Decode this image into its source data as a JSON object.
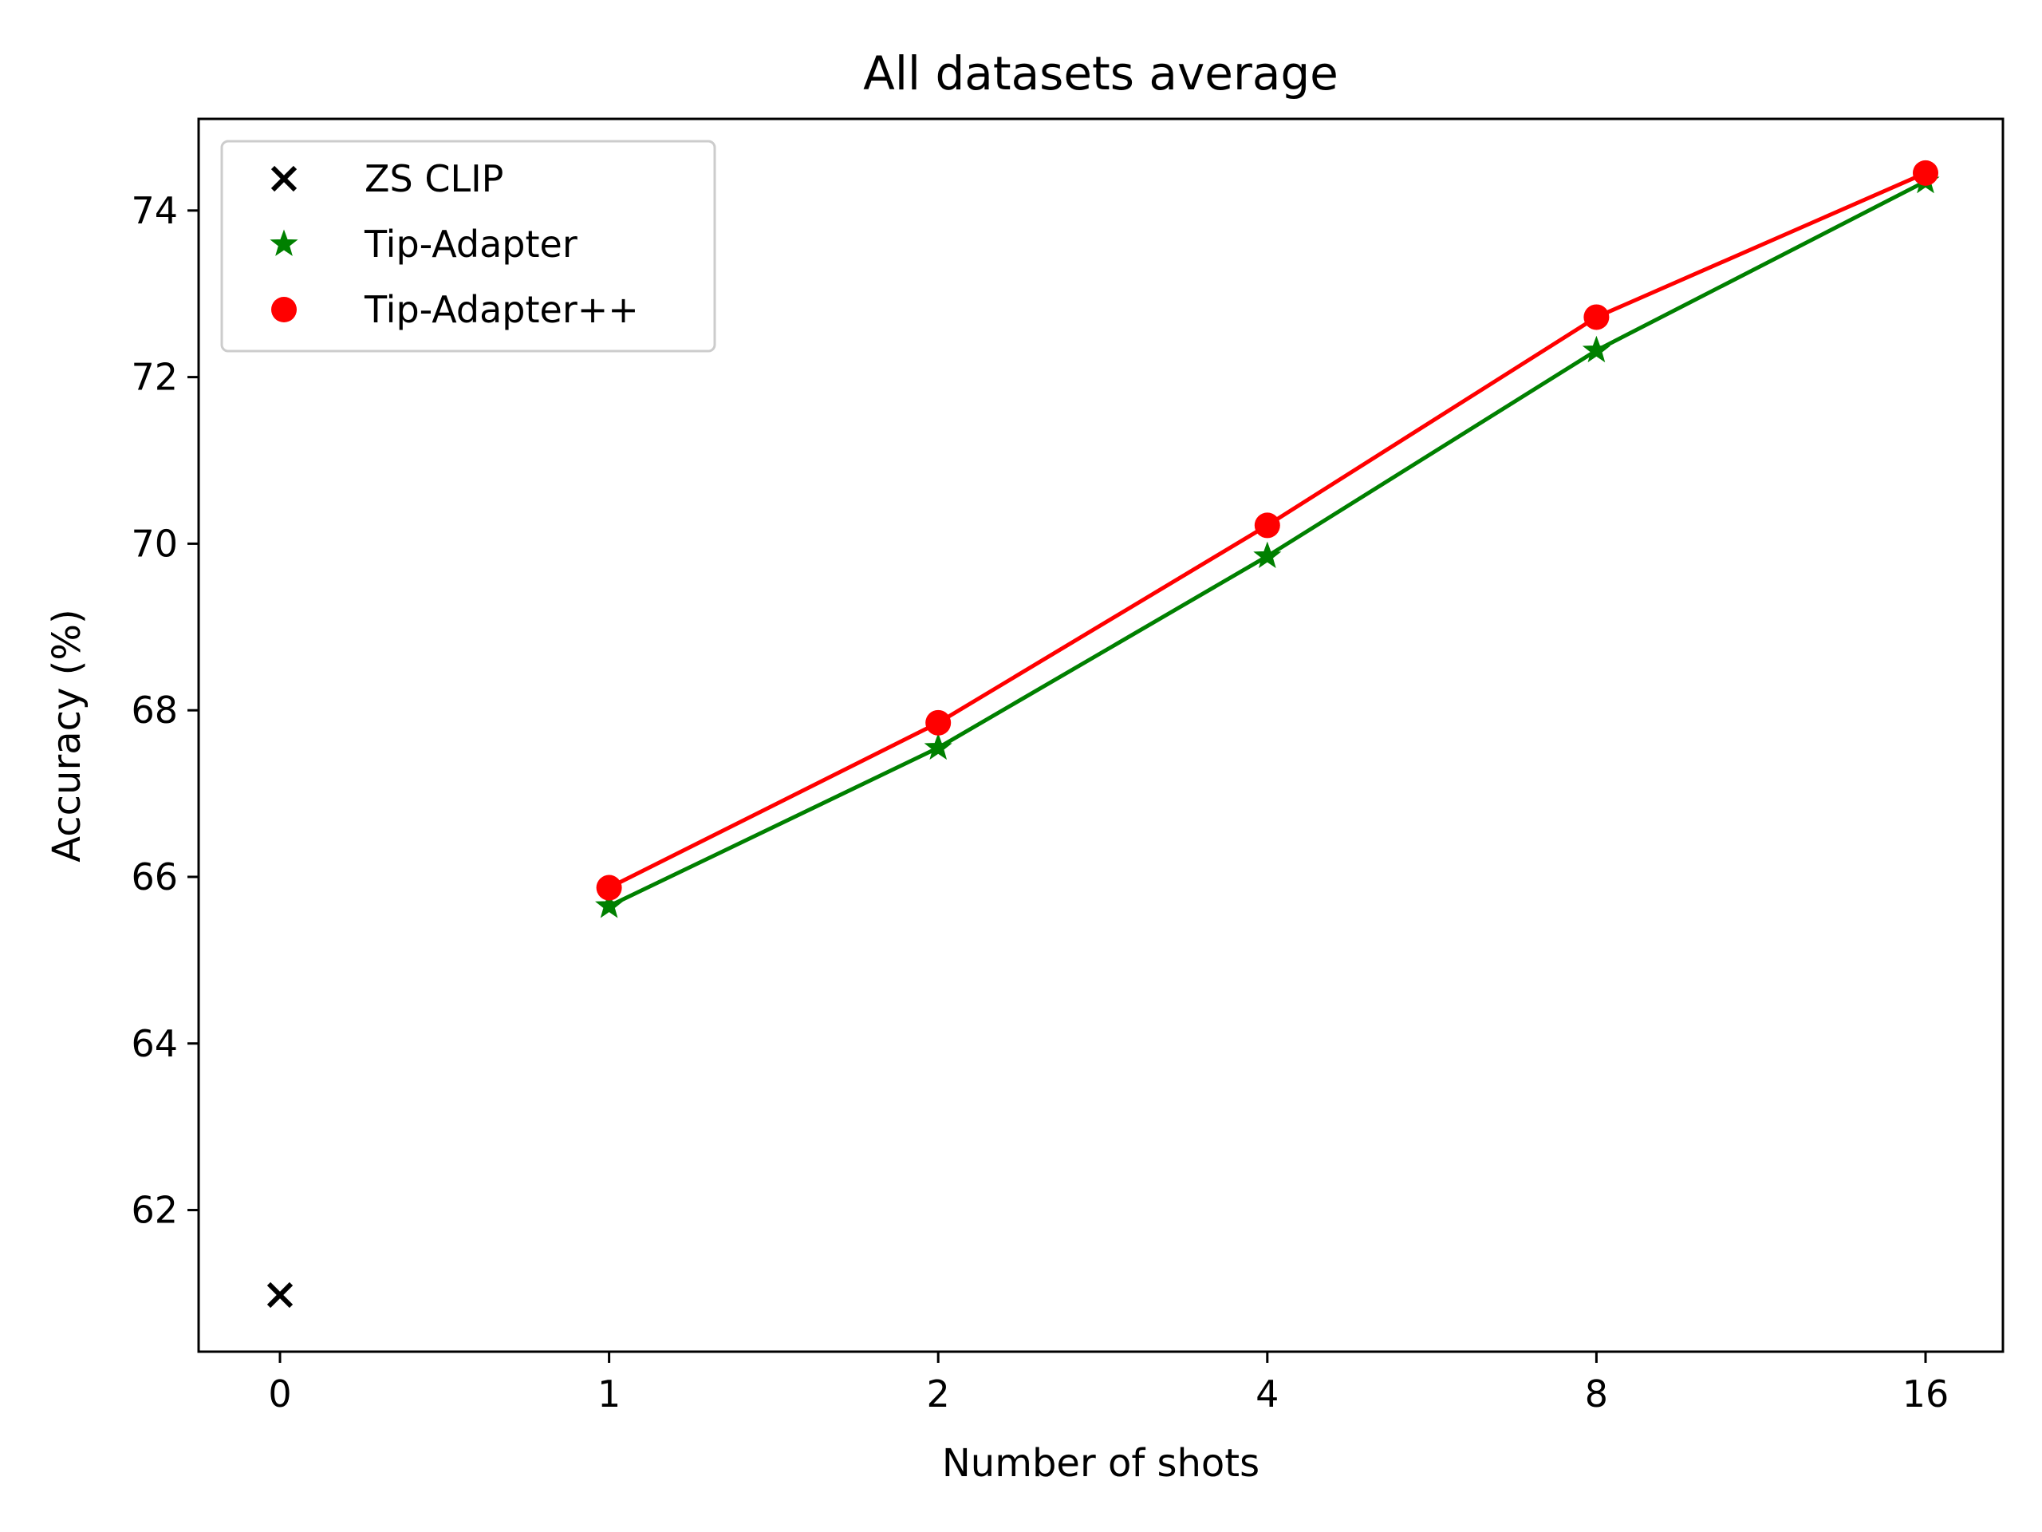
{
  "chart_data": {
    "type": "line",
    "title": "All datasets average",
    "xlabel": "Number of shots",
    "ylabel": "Accuracy (%)",
    "x_categories": [
      "0",
      "1",
      "2",
      "4",
      "8",
      "16"
    ],
    "ylim": [
      60.3,
      75.1
    ],
    "yticks": [
      62,
      64,
      66,
      68,
      70,
      72,
      74
    ],
    "grid": false,
    "legend_position": "top-left",
    "series": [
      {
        "name": "ZS CLIP",
        "marker": "x",
        "line": false,
        "color": "#000000",
        "points": [
          {
            "x": "0",
            "y": 60.98
          }
        ]
      },
      {
        "name": "Tip-Adapter",
        "marker": "star",
        "line": true,
        "color": "#008000",
        "points": [
          {
            "x": "1",
            "y": 65.65
          },
          {
            "x": "2",
            "y": 67.55
          },
          {
            "x": "4",
            "y": 69.85
          },
          {
            "x": "8",
            "y": 72.32
          },
          {
            "x": "16",
            "y": 74.35
          }
        ]
      },
      {
        "name": "Tip-Adapter++",
        "marker": "circle",
        "line": true,
        "color": "#ff0000",
        "points": [
          {
            "x": "1",
            "y": 65.87
          },
          {
            "x": "2",
            "y": 67.85
          },
          {
            "x": "4",
            "y": 70.22
          },
          {
            "x": "8",
            "y": 72.72
          },
          {
            "x": "16",
            "y": 74.45
          }
        ]
      }
    ]
  }
}
